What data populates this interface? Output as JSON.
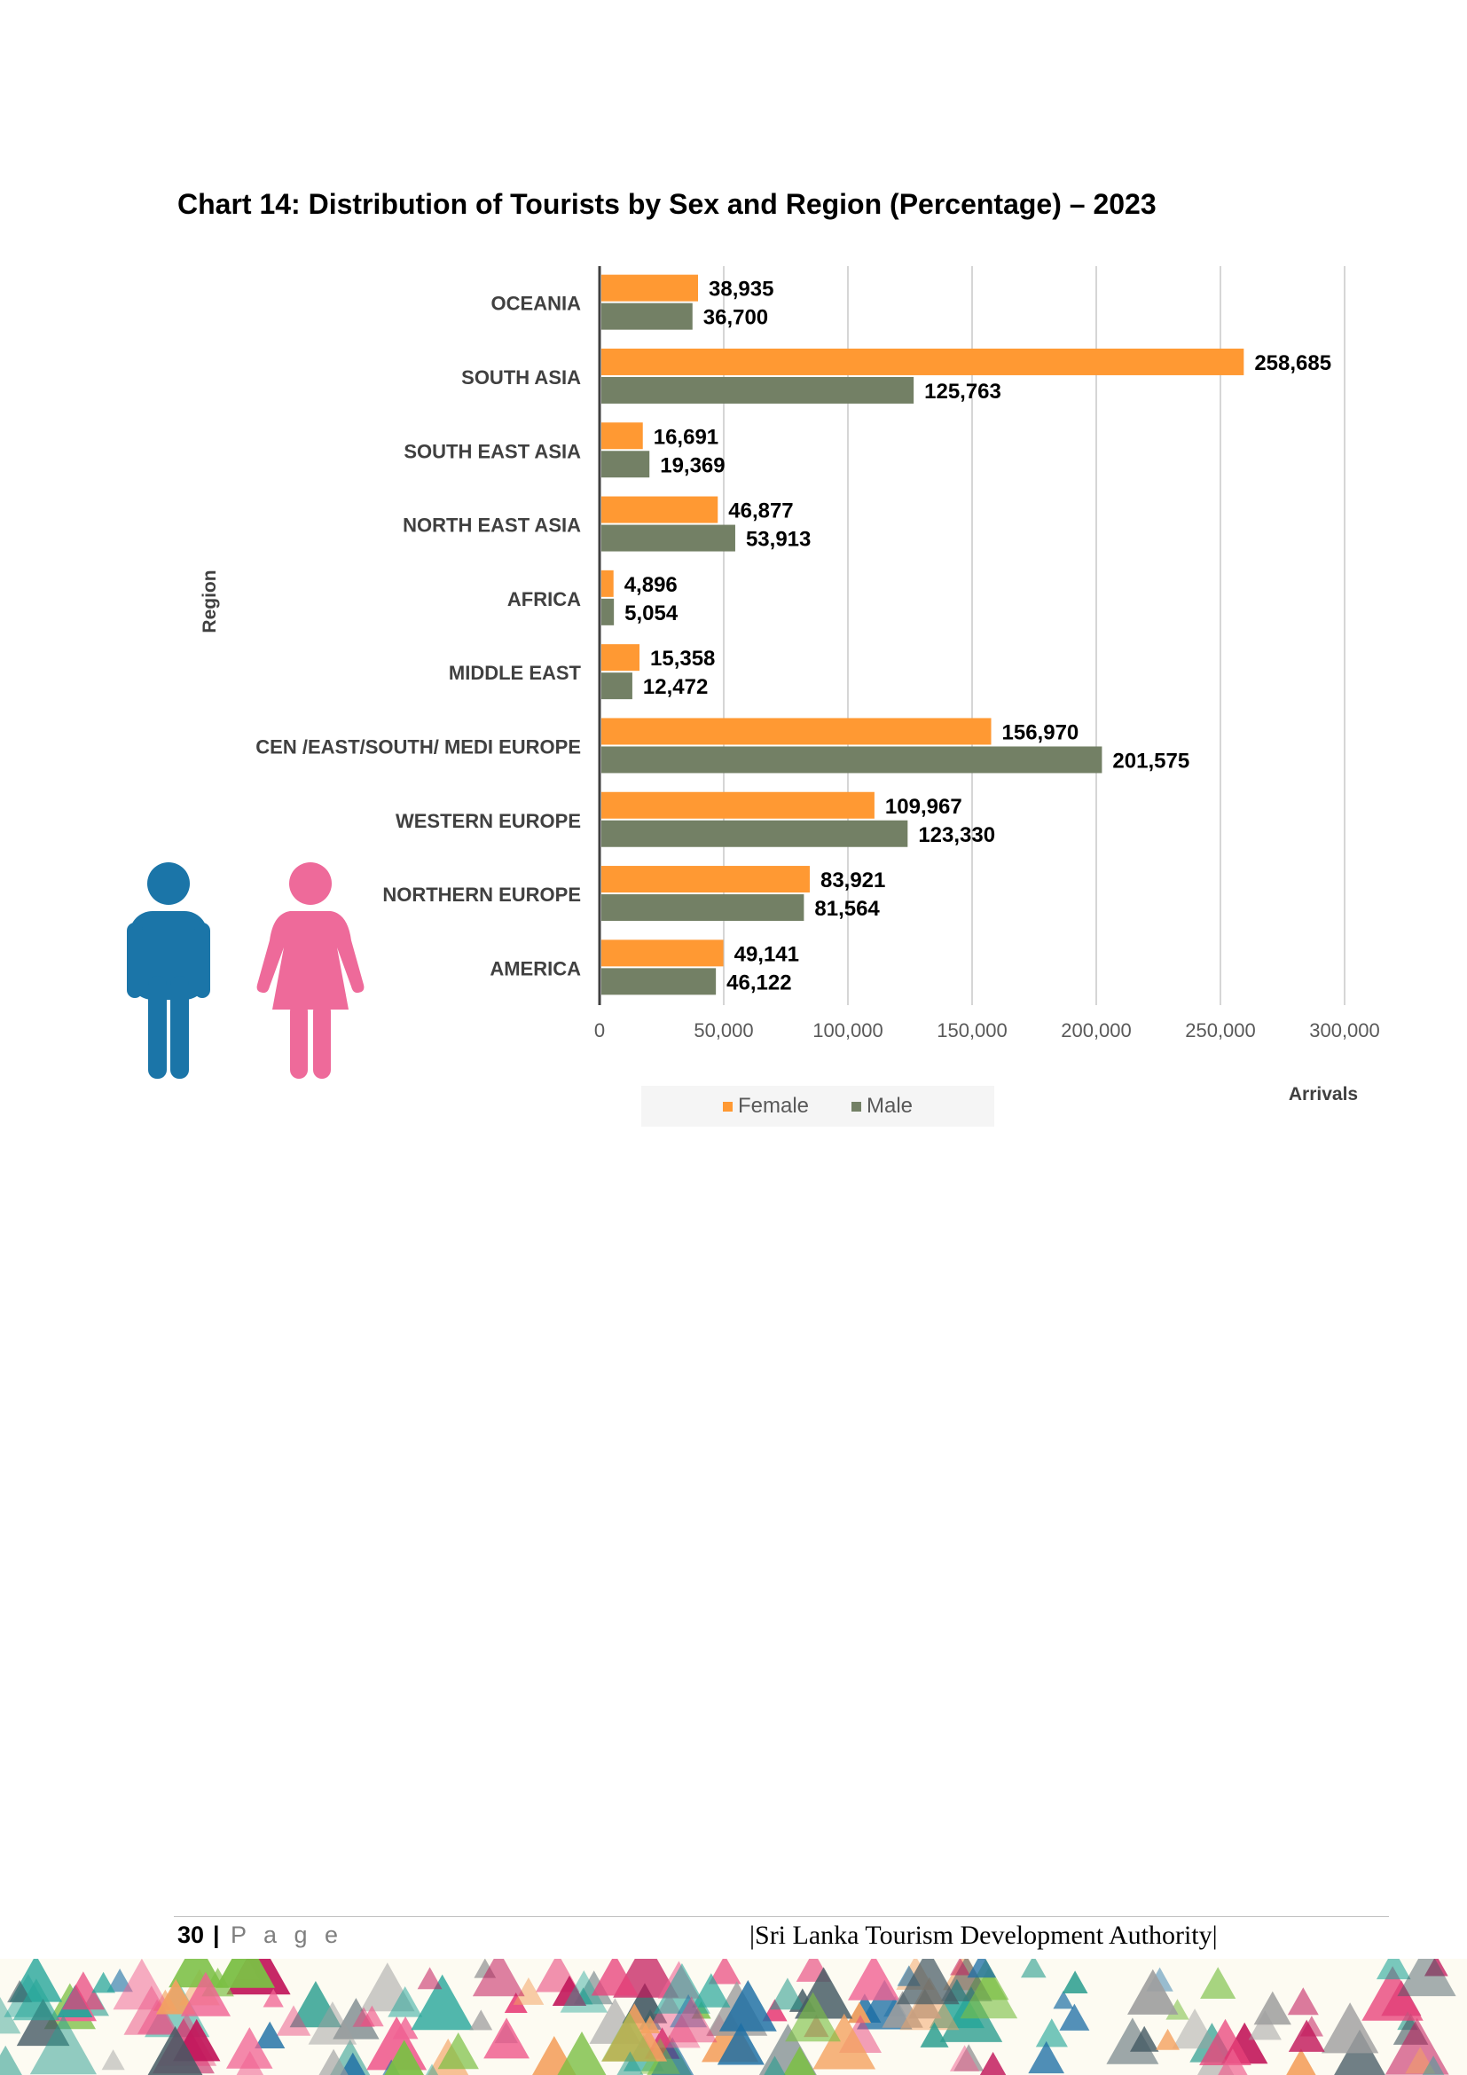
{
  "page": {
    "title": "Chart 14: Distribution of Tourists by Sex and Region (Percentage) – 2023",
    "footer": {
      "page_number": "30",
      "separator": "|",
      "page_word": "P a g e",
      "organization": "|Sri Lanka Tourism Development Authority|"
    }
  },
  "chart_data": {
    "type": "bar",
    "orientation": "horizontal",
    "title": "Chart 14: Distribution of Tourists by Sex and Region (Percentage) – 2023",
    "xlabel": "Arrivals",
    "ylabel": "Region",
    "xlim": [
      0,
      300000
    ],
    "x_ticks": [
      "0",
      "50,000",
      "100,000",
      "150,000",
      "200,000",
      "250,000",
      "300,000"
    ],
    "x_tick_values": [
      0,
      50000,
      100000,
      150000,
      200000,
      250000,
      300000
    ],
    "grid": "vertical",
    "legend_position": "bottom",
    "categories": [
      "OCEANIA",
      "SOUTH ASIA",
      "SOUTH EAST ASIA",
      "NORTH EAST  ASIA",
      "AFRICA",
      "MIDDLE EAST",
      "CEN /EAST/SOUTH/ MEDI  EUROPE",
      "WESTERN EUROPE",
      "NORTHERN EUROPE",
      "AMERICA"
    ],
    "series": [
      {
        "name": "Female",
        "color": "#FF9933",
        "values": [
          38935,
          258685,
          16691,
          46877,
          4896,
          15358,
          156970,
          109967,
          83921,
          49141
        ],
        "labels": [
          "38,935",
          "258,685",
          "16,691",
          "46,877",
          "4,896",
          "15,358",
          "156,970",
          "109,967",
          "83,921",
          "49,141"
        ]
      },
      {
        "name": "Male",
        "color": "#738065",
        "values": [
          36700,
          125763,
          19369,
          53913,
          5054,
          12472,
          201575,
          123330,
          81564,
          46122
        ],
        "labels": [
          "36,700",
          "125,763",
          "19,369",
          "53,913",
          "5,054",
          "12,472",
          "201,575",
          "123,330",
          "81,564",
          "46,122"
        ]
      }
    ],
    "icons": [
      "male-person-icon",
      "female-person-icon"
    ],
    "icon_colors": {
      "male": "#1B75A8",
      "female": "#EE6A9A"
    }
  }
}
